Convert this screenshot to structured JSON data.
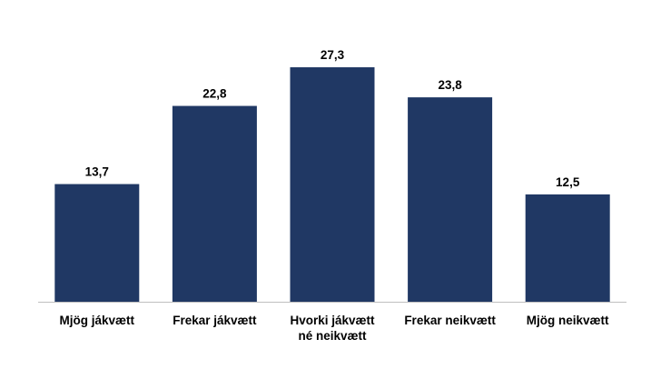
{
  "chart_data": {
    "type": "bar",
    "categories": [
      "Mjög jákvætt",
      "Frekar jákvætt",
      "Hvorki jákvætt\nné neikvætt",
      "Frekar neikvætt",
      "Mjög neikvætt"
    ],
    "values": [
      13.7,
      22.8,
      27.3,
      23.8,
      12.5
    ],
    "value_labels": [
      "13,7",
      "22,8",
      "27,3",
      "23,8",
      "12,5"
    ],
    "color": "#203864"
  }
}
